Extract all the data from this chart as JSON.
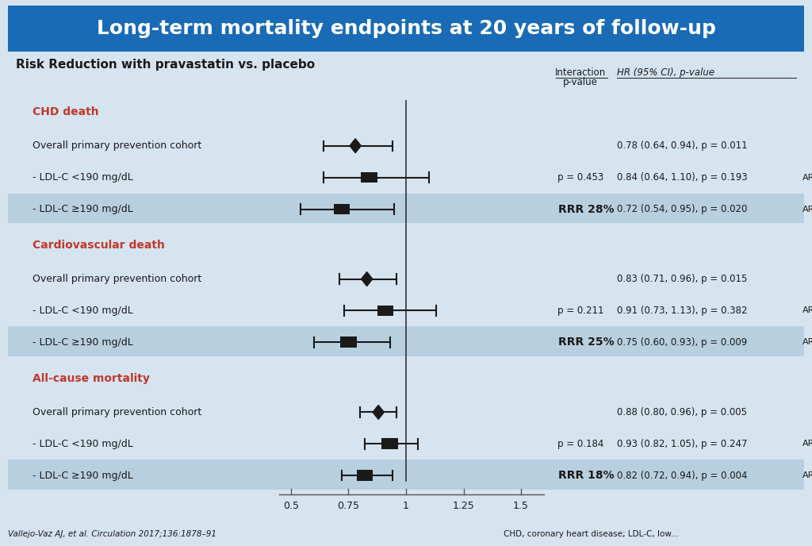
{
  "title": "Long-term mortality endpoints at 20 years of follow-up",
  "subtitle": "Risk Reduction with pravastatin vs. placebo",
  "title_bg_color": "#1a6bb5",
  "title_text_color": "#ffffff",
  "background_color": "#d6e4f0",
  "highlight_row_color": "#b8cfe0",
  "groups": [
    {
      "name": "CHD death",
      "color": "#c0392b",
      "rows": [
        {
          "label": "Overall primary prevention cohort",
          "estimate": 0.78,
          "ci_low": 0.64,
          "ci_high": 0.94,
          "marker": "diamond",
          "interaction_p": "",
          "hr_text": "0.78 (0.64, 0.94), p = 0.011",
          "rrr": "",
          "highlight": false,
          "arr": ""
        },
        {
          "label": "- LDL-C <190 mg/dL",
          "estimate": 0.84,
          "ci_low": 0.64,
          "ci_high": 1.1,
          "marker": "square",
          "interaction_p": "p = 0.453",
          "hr_text": "0.84 (0.64, 1.10), p = 0.193",
          "rrr": "",
          "highlight": false,
          "arr": "ARR"
        },
        {
          "label": "- LDL-C ≥190 mg/dL",
          "estimate": 0.72,
          "ci_low": 0.54,
          "ci_high": 0.95,
          "marker": "square",
          "interaction_p": "",
          "hr_text": "0.72 (0.54, 0.95), p = 0.020",
          "rrr": "RRR 28%",
          "highlight": true,
          "arr": "ARR"
        }
      ]
    },
    {
      "name": "Cardiovascular death",
      "color": "#c0392b",
      "rows": [
        {
          "label": "Overall primary prevention cohort",
          "estimate": 0.83,
          "ci_low": 0.71,
          "ci_high": 0.96,
          "marker": "diamond",
          "interaction_p": "",
          "hr_text": "0.83 (0.71, 0.96), p = 0.015",
          "rrr": "",
          "highlight": false,
          "arr": ""
        },
        {
          "label": "- LDL-C <190 mg/dL",
          "estimate": 0.91,
          "ci_low": 0.73,
          "ci_high": 1.13,
          "marker": "square",
          "interaction_p": "p = 0.211",
          "hr_text": "0.91 (0.73, 1.13), p = 0.382",
          "rrr": "",
          "highlight": false,
          "arr": "ARR"
        },
        {
          "label": "- LDL-C ≥190 mg/dL",
          "estimate": 0.75,
          "ci_low": 0.6,
          "ci_high": 0.93,
          "marker": "square",
          "interaction_p": "",
          "hr_text": "0.75 (0.60, 0.93), p = 0.009",
          "rrr": "RRR 25%",
          "highlight": true,
          "arr": "ARR"
        }
      ]
    },
    {
      "name": "All-cause mortality",
      "color": "#c0392b",
      "rows": [
        {
          "label": "Overall primary prevention cohort",
          "estimate": 0.88,
          "ci_low": 0.8,
          "ci_high": 0.96,
          "marker": "diamond",
          "interaction_p": "",
          "hr_text": "0.88 (0.80, 0.96), p = 0.005",
          "rrr": "",
          "highlight": false,
          "arr": ""
        },
        {
          "label": "- LDL-C <190 mg/dL",
          "estimate": 0.93,
          "ci_low": 0.82,
          "ci_high": 1.05,
          "marker": "square",
          "interaction_p": "p = 0.184",
          "hr_text": "0.93 (0.82, 1.05), p = 0.247",
          "rrr": "",
          "highlight": false,
          "arr": "ARR"
        },
        {
          "label": "- LDL-C ≥190 mg/dL",
          "estimate": 0.82,
          "ci_low": 0.72,
          "ci_high": 0.94,
          "marker": "square",
          "interaction_p": "",
          "hr_text": "0.82 (0.72, 0.94), p = 0.004",
          "rrr": "RRR 18%",
          "highlight": true,
          "arr": "ARR"
        }
      ]
    }
  ],
  "xmin": 0.4,
  "xmax": 1.6,
  "xticks": [
    0.5,
    0.75,
    1.0,
    1.25,
    1.5
  ],
  "xticklabels": [
    "0.5",
    "0.75",
    "1",
    "1.25",
    "1.5"
  ],
  "footnote": "Vallejo-Vaz AJ, et al. Circulation 2017;136:1878–91",
  "footnote2": "CHD, coronary heart disease; LDL-C, low...",
  "col_header_interaction": "Interaction\np-value",
  "col_header_hr": "HR (95% CI), p-value"
}
